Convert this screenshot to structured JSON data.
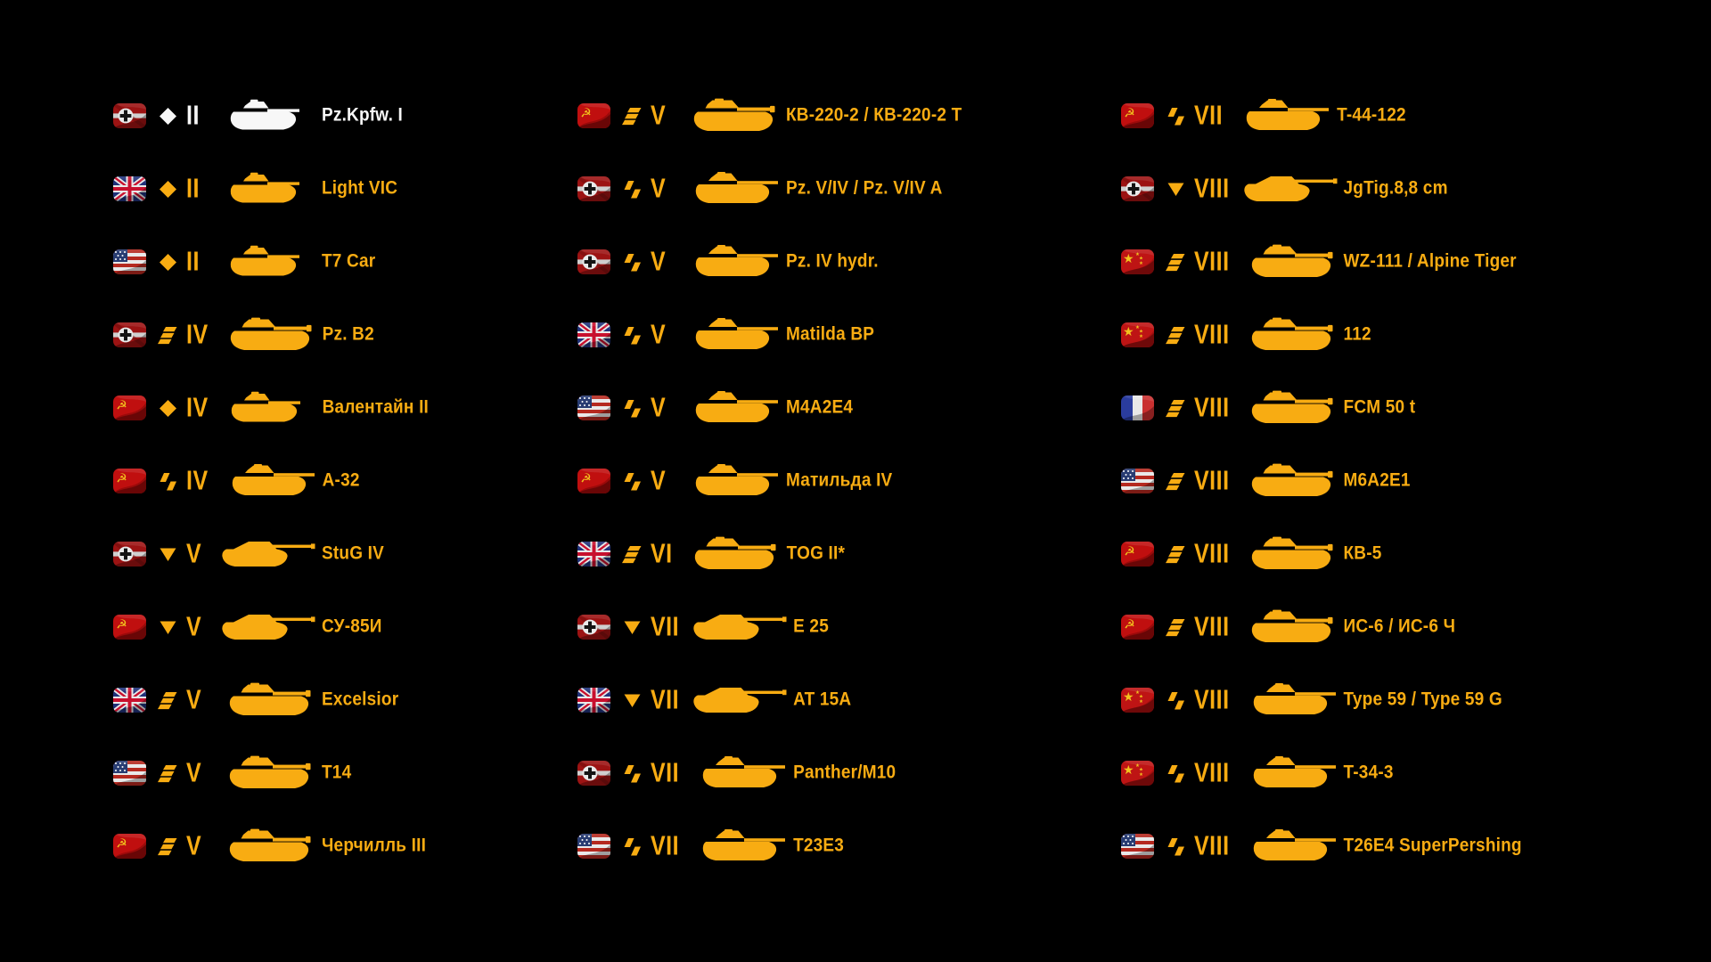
{
  "app": {
    "background": "#000000",
    "accent_gold": "#F8AC12",
    "stock_white": "#F7F7F7",
    "flag_colors": {
      "ussr_red": "#C00F0F",
      "china_red": "#BE1414",
      "germany_red": "#9C1313",
      "uk_blue": "#20317A",
      "usa_stripe_red": "#B5291F",
      "usa_canton_blue": "#283C72",
      "france_blue": "#2A3C9E",
      "france_red": "#C93030",
      "star_gold": "#F2C21E"
    }
  },
  "icon_legend": {
    "light": "diamond-icon",
    "medium": "double-chevron-icon",
    "heavy": "triple-bar-icon",
    "td": "inverted-triangle-icon"
  },
  "columns": [
    {
      "rows": [
        {
          "nation": "germany",
          "vehicle_class": "light",
          "tier": "II",
          "name": "Pz.Kpfw. I",
          "color_state": "white"
        },
        {
          "nation": "uk",
          "vehicle_class": "light",
          "tier": "II",
          "name": "Light VIC",
          "color_state": "gold"
        },
        {
          "nation": "usa",
          "vehicle_class": "light",
          "tier": "II",
          "name": "T7 Car",
          "color_state": "gold"
        },
        {
          "nation": "germany",
          "vehicle_class": "heavy",
          "tier": "IV",
          "name": "Pz. B2",
          "color_state": "gold"
        },
        {
          "nation": "ussr",
          "vehicle_class": "light",
          "tier": "IV",
          "name": "Валентайн II",
          "color_state": "gold"
        },
        {
          "nation": "ussr",
          "vehicle_class": "medium",
          "tier": "IV",
          "name": "А-32",
          "color_state": "gold"
        },
        {
          "nation": "germany",
          "vehicle_class": "td",
          "tier": "V",
          "name": "StuG IV",
          "color_state": "gold"
        },
        {
          "nation": "ussr",
          "vehicle_class": "td",
          "tier": "V",
          "name": "СУ-85И",
          "color_state": "gold"
        },
        {
          "nation": "uk",
          "vehicle_class": "heavy",
          "tier": "V",
          "name": "Excelsior",
          "color_state": "gold"
        },
        {
          "nation": "usa",
          "vehicle_class": "heavy",
          "tier": "V",
          "name": "T14",
          "color_state": "gold"
        },
        {
          "nation": "ussr",
          "vehicle_class": "heavy",
          "tier": "V",
          "name": "Черчилль III",
          "color_state": "gold"
        }
      ]
    },
    {
      "rows": [
        {
          "nation": "ussr",
          "vehicle_class": "heavy",
          "tier": "V",
          "name": "КВ-220-2 / КВ-220-2 Т",
          "color_state": "gold"
        },
        {
          "nation": "germany",
          "vehicle_class": "medium",
          "tier": "V",
          "name": "Pz. V/IV / Pz. V/IV A",
          "color_state": "gold"
        },
        {
          "nation": "germany",
          "vehicle_class": "medium",
          "tier": "V",
          "name": "Pz. IV hydr.",
          "color_state": "gold"
        },
        {
          "nation": "uk",
          "vehicle_class": "medium",
          "tier": "V",
          "name": "Matilda BP",
          "color_state": "gold"
        },
        {
          "nation": "usa",
          "vehicle_class": "medium",
          "tier": "V",
          "name": "M4A2E4",
          "color_state": "gold"
        },
        {
          "nation": "ussr",
          "vehicle_class": "medium",
          "tier": "V",
          "name": "Матильда IV",
          "color_state": "gold"
        },
        {
          "nation": "uk",
          "vehicle_class": "heavy",
          "tier": "VI",
          "name": "TOG II*",
          "color_state": "gold"
        },
        {
          "nation": "germany",
          "vehicle_class": "td",
          "tier": "VII",
          "name": "E 25",
          "color_state": "gold"
        },
        {
          "nation": "uk",
          "vehicle_class": "td",
          "tier": "VII",
          "name": "AT 15A",
          "color_state": "gold"
        },
        {
          "nation": "germany",
          "vehicle_class": "medium",
          "tier": "VII",
          "name": "Panther/M10",
          "color_state": "gold"
        },
        {
          "nation": "usa",
          "vehicle_class": "medium",
          "tier": "VII",
          "name": "T23E3",
          "color_state": "gold"
        }
      ]
    },
    {
      "rows": [
        {
          "nation": "ussr",
          "vehicle_class": "medium",
          "tier": "VII",
          "name": "T-44-122",
          "color_state": "gold"
        },
        {
          "nation": "germany",
          "vehicle_class": "td",
          "tier": "VIII",
          "name": "JgTig.8,8 cm",
          "color_state": "gold"
        },
        {
          "nation": "china",
          "vehicle_class": "heavy",
          "tier": "VIII",
          "name": "WZ-111 / Alpine Tiger",
          "color_state": "gold"
        },
        {
          "nation": "china",
          "vehicle_class": "heavy",
          "tier": "VIII",
          "name": "112",
          "color_state": "gold"
        },
        {
          "nation": "france",
          "vehicle_class": "heavy",
          "tier": "VIII",
          "name": "FCM 50 t",
          "color_state": "gold"
        },
        {
          "nation": "usa",
          "vehicle_class": "heavy",
          "tier": "VIII",
          "name": "M6A2E1",
          "color_state": "gold"
        },
        {
          "nation": "ussr",
          "vehicle_class": "heavy",
          "tier": "VIII",
          "name": "КВ-5",
          "color_state": "gold"
        },
        {
          "nation": "ussr",
          "vehicle_class": "heavy",
          "tier": "VIII",
          "name": "ИС-6 / ИС-6 Ч",
          "color_state": "gold"
        },
        {
          "nation": "china",
          "vehicle_class": "medium",
          "tier": "VIII",
          "name": "Type 59 / Type 59 G",
          "color_state": "gold"
        },
        {
          "nation": "china",
          "vehicle_class": "medium",
          "tier": "VIII",
          "name": "T-34-3",
          "color_state": "gold"
        },
        {
          "nation": "usa",
          "vehicle_class": "medium",
          "tier": "VIII",
          "name": "T26E4 SuperPershing",
          "color_state": "gold"
        }
      ]
    }
  ]
}
